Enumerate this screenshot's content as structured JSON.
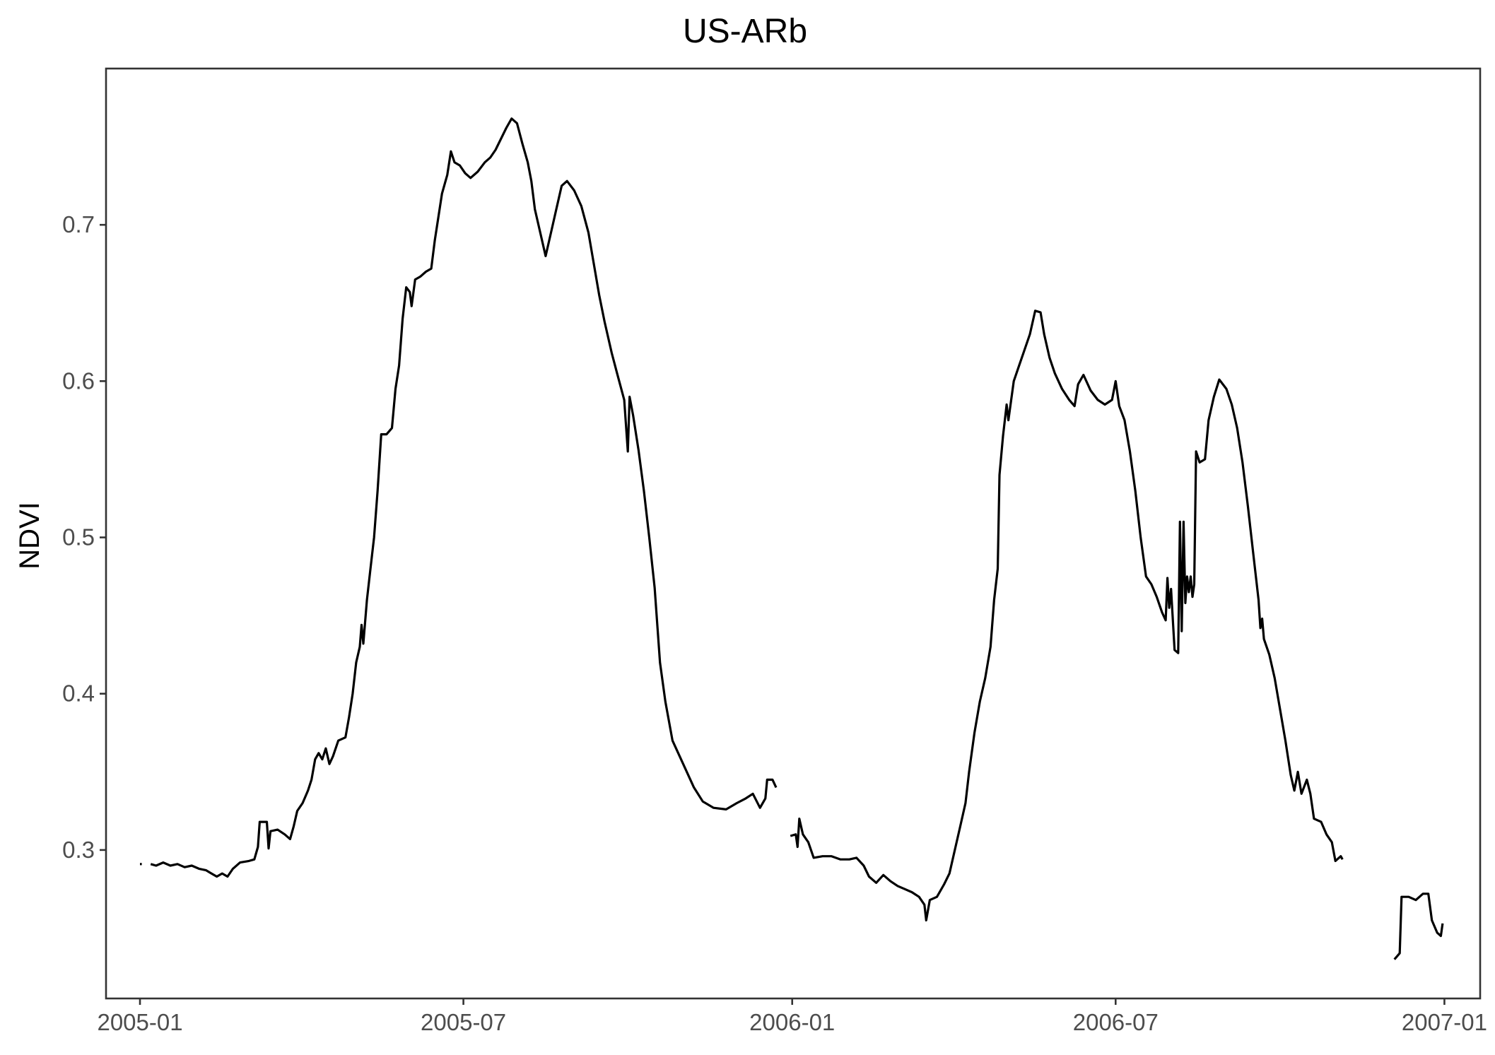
{
  "chart_data": {
    "type": "line",
    "title": "US-ARb",
    "xlabel": "",
    "ylabel": "NDVI",
    "x_ticks": [
      "2005-01",
      "2005-07",
      "2006-01",
      "2006-07",
      "2007-01"
    ],
    "y_ticks": [
      "0.3",
      "0.4",
      "0.5",
      "0.6",
      "0.7"
    ],
    "xlim": [
      "2004-12-13",
      "2007-01-21"
    ],
    "ylim": [
      0.205,
      0.8
    ],
    "grid": false,
    "legend": "none",
    "line_color": "#000000",
    "segments": [
      [
        [
          "2005-01-01",
          0.291
        ],
        [
          "2005-01-02",
          0.291
        ]
      ],
      [
        [
          "2005-01-07",
          0.291
        ],
        [
          "2005-01-10",
          0.29
        ],
        [
          "2005-01-14",
          0.292
        ],
        [
          "2005-01-18",
          0.29
        ],
        [
          "2005-01-22",
          0.291
        ],
        [
          "2005-01-26",
          0.289
        ],
        [
          "2005-01-30",
          0.29
        ],
        [
          "2005-02-03",
          0.288
        ],
        [
          "2005-02-07",
          0.287
        ],
        [
          "2005-02-10",
          0.285
        ],
        [
          "2005-02-13",
          0.283
        ],
        [
          "2005-02-16",
          0.285
        ],
        [
          "2005-02-19",
          0.283
        ],
        [
          "2005-02-22",
          0.288
        ],
        [
          "2005-02-26",
          0.292
        ],
        [
          "2005-03-03",
          0.293
        ],
        [
          "2005-03-06",
          0.294
        ],
        [
          "2005-03-08",
          0.302
        ],
        [
          "2005-03-09",
          0.318
        ],
        [
          "2005-03-13",
          0.318
        ],
        [
          "2005-03-14",
          0.301
        ],
        [
          "2005-03-15",
          0.312
        ],
        [
          "2005-03-19",
          0.313
        ],
        [
          "2005-03-23",
          0.31
        ],
        [
          "2005-03-26",
          0.307
        ],
        [
          "2005-03-28",
          0.315
        ],
        [
          "2005-03-30",
          0.325
        ],
        [
          "2005-04-02",
          0.33
        ],
        [
          "2005-04-05",
          0.338
        ],
        [
          "2005-04-07",
          0.345
        ],
        [
          "2005-04-09",
          0.358
        ],
        [
          "2005-04-11",
          0.362
        ],
        [
          "2005-04-13",
          0.358
        ],
        [
          "2005-04-15",
          0.365
        ],
        [
          "2005-04-17",
          0.355
        ],
        [
          "2005-04-19",
          0.36
        ],
        [
          "2005-04-22",
          0.37
        ],
        [
          "2005-04-26",
          0.372
        ],
        [
          "2005-04-28",
          0.385
        ],
        [
          "2005-04-30",
          0.4
        ],
        [
          "2005-05-02",
          0.42
        ],
        [
          "2005-05-04",
          0.43
        ],
        [
          "2005-05-05",
          0.444
        ],
        [
          "2005-05-06",
          0.432
        ],
        [
          "2005-05-08",
          0.46
        ],
        [
          "2005-05-10",
          0.48
        ],
        [
          "2005-05-12",
          0.5
        ],
        [
          "2005-05-14",
          0.53
        ],
        [
          "2005-05-16",
          0.566
        ],
        [
          "2005-05-19",
          0.566
        ],
        [
          "2005-05-22",
          0.57
        ],
        [
          "2005-05-24",
          0.595
        ],
        [
          "2005-05-26",
          0.61
        ],
        [
          "2005-05-28",
          0.64
        ],
        [
          "2005-05-30",
          0.66
        ],
        [
          "2005-06-01",
          0.657
        ],
        [
          "2005-06-02",
          0.648
        ],
        [
          "2005-06-04",
          0.665
        ],
        [
          "2005-06-07",
          0.667
        ],
        [
          "2005-06-10",
          0.67
        ],
        [
          "2005-06-13",
          0.672
        ],
        [
          "2005-06-15",
          0.69
        ],
        [
          "2005-06-17",
          0.705
        ],
        [
          "2005-06-19",
          0.72
        ],
        [
          "2005-06-22",
          0.732
        ],
        [
          "2005-06-24",
          0.747
        ],
        [
          "2005-06-26",
          0.74
        ],
        [
          "2005-06-29",
          0.738
        ],
        [
          "2005-07-02",
          0.733
        ],
        [
          "2005-07-05",
          0.73
        ],
        [
          "2005-07-09",
          0.734
        ],
        [
          "2005-07-13",
          0.74
        ],
        [
          "2005-07-16",
          0.743
        ],
        [
          "2005-07-19",
          0.748
        ],
        [
          "2005-07-22",
          0.755
        ],
        [
          "2005-07-25",
          0.762
        ],
        [
          "2005-07-28",
          0.768
        ],
        [
          "2005-07-31",
          0.765
        ],
        [
          "2005-08-03",
          0.752
        ],
        [
          "2005-08-06",
          0.74
        ],
        [
          "2005-08-08",
          0.728
        ],
        [
          "2005-08-10",
          0.71
        ],
        [
          "2005-08-13",
          0.695
        ],
        [
          "2005-08-16",
          0.68
        ],
        [
          "2005-08-19",
          0.695
        ],
        [
          "2005-08-22",
          0.71
        ],
        [
          "2005-08-25",
          0.725
        ],
        [
          "2005-08-28",
          0.728
        ],
        [
          "2005-09-01",
          0.722
        ],
        [
          "2005-09-05",
          0.712
        ],
        [
          "2005-09-09",
          0.695
        ],
        [
          "2005-09-12",
          0.675
        ],
        [
          "2005-09-15",
          0.655
        ],
        [
          "2005-09-18",
          0.638
        ],
        [
          "2005-09-22",
          0.618
        ],
        [
          "2005-09-25",
          0.605
        ],
        [
          "2005-09-29",
          0.588
        ],
        [
          "2005-10-01",
          0.555
        ],
        [
          "2005-10-02",
          0.59
        ],
        [
          "2005-10-04",
          0.578
        ],
        [
          "2005-10-07",
          0.556
        ],
        [
          "2005-10-10",
          0.53
        ],
        [
          "2005-10-13",
          0.5
        ],
        [
          "2005-10-16",
          0.468
        ],
        [
          "2005-10-19",
          0.42
        ],
        [
          "2005-10-22",
          0.395
        ],
        [
          "2005-10-26",
          0.37
        ],
        [
          "2005-10-30",
          0.36
        ],
        [
          "2005-11-03",
          0.35
        ],
        [
          "2005-11-07",
          0.34
        ],
        [
          "2005-11-12",
          0.331
        ],
        [
          "2005-11-18",
          0.327
        ],
        [
          "2005-11-25",
          0.326
        ],
        [
          "2005-12-01",
          0.33
        ],
        [
          "2005-12-06",
          0.333
        ],
        [
          "2005-12-10",
          0.336
        ],
        [
          "2005-12-14",
          0.327
        ],
        [
          "2005-12-17",
          0.333
        ],
        [
          "2005-12-18",
          0.345
        ],
        [
          "2005-12-21",
          0.345
        ],
        [
          "2005-12-23",
          0.34
        ]
      ],
      [
        [
          "2005-12-31",
          0.309
        ],
        [
          "2006-01-03",
          0.31
        ],
        [
          "2006-01-04",
          0.302
        ],
        [
          "2006-01-05",
          0.32
        ],
        [
          "2006-01-07",
          0.31
        ],
        [
          "2006-01-10",
          0.305
        ],
        [
          "2006-01-13",
          0.295
        ],
        [
          "2006-01-18",
          0.296
        ],
        [
          "2006-01-23",
          0.296
        ],
        [
          "2006-01-28",
          0.294
        ],
        [
          "2006-02-02",
          0.294
        ],
        [
          "2006-02-06",
          0.295
        ],
        [
          "2006-02-10",
          0.29
        ],
        [
          "2006-02-13",
          0.283
        ],
        [
          "2006-02-17",
          0.279
        ],
        [
          "2006-02-21",
          0.284
        ],
        [
          "2006-02-25",
          0.28
        ],
        [
          "2006-03-01",
          0.277
        ],
        [
          "2006-03-05",
          0.275
        ],
        [
          "2006-03-09",
          0.273
        ],
        [
          "2006-03-13",
          0.27
        ],
        [
          "2006-03-16",
          0.265
        ],
        [
          "2006-03-17",
          0.255
        ],
        [
          "2006-03-19",
          0.268
        ],
        [
          "2006-03-23",
          0.27
        ],
        [
          "2006-03-27",
          0.278
        ],
        [
          "2006-03-30",
          0.285
        ],
        [
          "2006-04-02",
          0.3
        ],
        [
          "2006-04-05",
          0.315
        ],
        [
          "2006-04-08",
          0.33
        ],
        [
          "2006-04-10",
          0.35
        ],
        [
          "2006-04-13",
          0.375
        ],
        [
          "2006-04-16",
          0.395
        ],
        [
          "2006-04-19",
          0.41
        ],
        [
          "2006-04-22",
          0.43
        ],
        [
          "2006-04-24",
          0.46
        ],
        [
          "2006-04-26",
          0.48
        ],
        [
          "2006-04-27",
          0.54
        ],
        [
          "2006-04-29",
          0.565
        ],
        [
          "2006-05-01",
          0.585
        ],
        [
          "2006-05-02",
          0.575
        ],
        [
          "2006-05-05",
          0.6
        ],
        [
          "2006-05-08",
          0.61
        ],
        [
          "2006-05-11",
          0.62
        ],
        [
          "2006-05-14",
          0.63
        ],
        [
          "2006-05-17",
          0.645
        ],
        [
          "2006-05-20",
          0.644
        ],
        [
          "2006-05-22",
          0.63
        ],
        [
          "2006-05-25",
          0.615
        ],
        [
          "2006-05-28",
          0.605
        ],
        [
          "2006-06-01",
          0.595
        ],
        [
          "2006-06-05",
          0.588
        ],
        [
          "2006-06-08",
          0.584
        ],
        [
          "2006-06-10",
          0.598
        ],
        [
          "2006-06-13",
          0.604
        ],
        [
          "2006-06-17",
          0.594
        ],
        [
          "2006-06-21",
          0.588
        ],
        [
          "2006-06-25",
          0.585
        ],
        [
          "2006-06-29",
          0.588
        ],
        [
          "2006-07-01",
          0.6
        ],
        [
          "2006-07-03",
          0.584
        ],
        [
          "2006-07-06",
          0.575
        ],
        [
          "2006-07-09",
          0.555
        ],
        [
          "2006-07-12",
          0.53
        ],
        [
          "2006-07-15",
          0.5
        ],
        [
          "2006-07-18",
          0.475
        ],
        [
          "2006-07-21",
          0.47
        ],
        [
          "2006-07-24",
          0.462
        ],
        [
          "2006-07-27",
          0.452
        ],
        [
          "2006-07-29",
          0.447
        ],
        [
          "2006-07-30",
          0.474
        ],
        [
          "2006-07-31",
          0.455
        ],
        [
          "2006-08-01",
          0.467
        ],
        [
          "2006-08-03",
          0.428
        ],
        [
          "2006-08-05",
          0.426
        ],
        [
          "2006-08-06",
          0.51
        ],
        [
          "2006-08-07",
          0.44
        ],
        [
          "2006-08-08",
          0.51
        ],
        [
          "2006-08-09",
          0.458
        ],
        [
          "2006-08-10",
          0.475
        ],
        [
          "2006-08-11",
          0.465
        ],
        [
          "2006-08-12",
          0.475
        ],
        [
          "2006-08-13",
          0.462
        ],
        [
          "2006-08-14",
          0.47
        ],
        [
          "2006-08-15",
          0.555
        ],
        [
          "2006-08-17",
          0.548
        ],
        [
          "2006-08-20",
          0.55
        ],
        [
          "2006-08-22",
          0.575
        ],
        [
          "2006-08-25",
          0.59
        ],
        [
          "2006-08-28",
          0.601
        ],
        [
          "2006-09-01",
          0.595
        ],
        [
          "2006-09-04",
          0.585
        ],
        [
          "2006-09-07",
          0.57
        ],
        [
          "2006-09-10",
          0.548
        ],
        [
          "2006-09-13",
          0.52
        ],
        [
          "2006-09-16",
          0.49
        ],
        [
          "2006-09-19",
          0.46
        ],
        [
          "2006-09-20",
          0.442
        ],
        [
          "2006-09-21",
          0.448
        ],
        [
          "2006-09-22",
          0.435
        ],
        [
          "2006-09-25",
          0.425
        ],
        [
          "2006-09-28",
          0.41
        ],
        [
          "2006-10-01",
          0.39
        ],
        [
          "2006-10-04",
          0.37
        ],
        [
          "2006-10-07",
          0.348
        ],
        [
          "2006-10-09",
          0.338
        ],
        [
          "2006-10-11",
          0.35
        ],
        [
          "2006-10-13",
          0.336
        ],
        [
          "2006-10-16",
          0.345
        ],
        [
          "2006-10-18",
          0.336
        ],
        [
          "2006-10-20",
          0.32
        ],
        [
          "2006-10-24",
          0.318
        ],
        [
          "2006-10-27",
          0.31
        ],
        [
          "2006-10-30",
          0.305
        ],
        [
          "2006-11-01",
          0.293
        ],
        [
          "2006-11-04",
          0.296
        ],
        [
          "2006-11-05",
          0.294
        ]
      ],
      [
        [
          "2006-12-04",
          0.23
        ],
        [
          "2006-12-07",
          0.234
        ],
        [
          "2006-12-08",
          0.27
        ],
        [
          "2006-12-12",
          0.27
        ],
        [
          "2006-12-16",
          0.268
        ],
        [
          "2006-12-20",
          0.272
        ],
        [
          "2006-12-23",
          0.272
        ],
        [
          "2006-12-25",
          0.255
        ],
        [
          "2006-12-28",
          0.247
        ],
        [
          "2006-12-30",
          0.245
        ],
        [
          "2006-12-31",
          0.253
        ]
      ]
    ]
  }
}
